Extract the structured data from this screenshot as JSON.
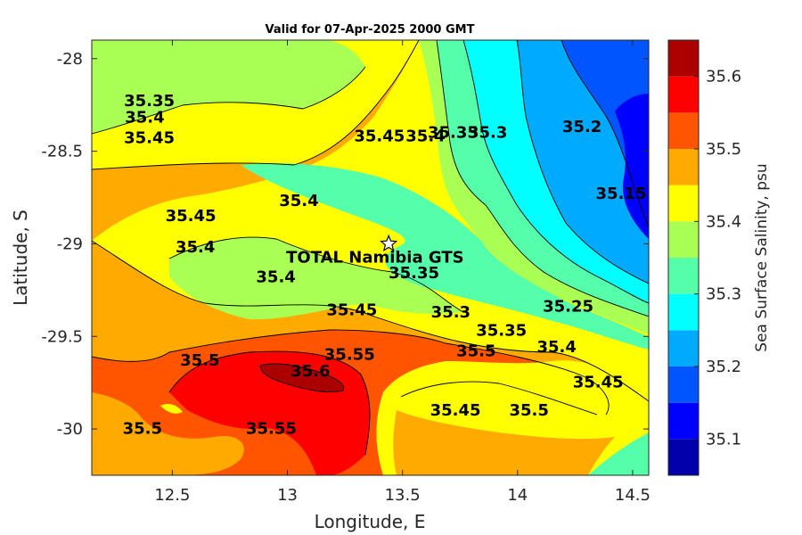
{
  "title": "Valid for 07-Apr-2025 2000 GMT",
  "chart_data": {
    "type": "heatmap",
    "variant": "filled-contour",
    "title": "Valid for 07-Apr-2025 2000 GMT",
    "xlabel": "Longitude, E",
    "ylabel": "Latitude, S",
    "xlim": [
      12.15,
      14.57
    ],
    "ylim": [
      -30.25,
      -27.9
    ],
    "xticks": [
      "12.5",
      "13",
      "13.5",
      "14",
      "14.5"
    ],
    "xtick_values": [
      12.5,
      13,
      13.5,
      14,
      14.5
    ],
    "yticks": [
      "-28",
      "-28.5",
      "-29",
      "-29.5",
      "-30"
    ],
    "ytick_values": [
      -28,
      -28.5,
      -29,
      -29.5,
      -30
    ],
    "colorbar": {
      "label": "Sea Surface Salinity, psu",
      "range": [
        35.05,
        35.65
      ],
      "ticks": [
        "35.1",
        "35.2",
        "35.3",
        "35.4",
        "35.5",
        "35.6"
      ],
      "tick_values": [
        35.1,
        35.2,
        35.3,
        35.4,
        35.5,
        35.6
      ],
      "levels": [
        35.05,
        35.1,
        35.15,
        35.2,
        35.25,
        35.3,
        35.35,
        35.4,
        35.45,
        35.5,
        35.55,
        35.6,
        35.65
      ],
      "colors": [
        "#0000aa",
        "#0000ff",
        "#0055ff",
        "#00aaff",
        "#00ffff",
        "#55ffaa",
        "#aaff55",
        "#ffff00",
        "#ffaa00",
        "#ff5500",
        "#ff0000",
        "#aa0000"
      ]
    },
    "contour_labels": [
      {
        "text": "35.35",
        "lon": 12.4,
        "lat": -28.23
      },
      {
        "text": "35.4",
        "lon": 12.38,
        "lat": -28.32
      },
      {
        "text": "35.45",
        "lon": 12.4,
        "lat": -28.43
      },
      {
        "text": "35.45",
        "lon": 13.4,
        "lat": -28.42
      },
      {
        "text": "35.4",
        "lon": 13.6,
        "lat": -28.42
      },
      {
        "text": "35.35",
        "lon": 13.72,
        "lat": -28.4
      },
      {
        "text": "35.3",
        "lon": 13.87,
        "lat": -28.4
      },
      {
        "text": "35.2",
        "lon": 14.28,
        "lat": -28.37
      },
      {
        "text": "35.15",
        "lon": 14.45,
        "lat": -28.73
      },
      {
        "text": "35.4",
        "lon": 13.05,
        "lat": -28.77
      },
      {
        "text": "35.45",
        "lon": 12.58,
        "lat": -28.85
      },
      {
        "text": "35.4",
        "lon": 12.6,
        "lat": -29.02
      },
      {
        "text": "35.35",
        "lon": 13.55,
        "lat": -29.16
      },
      {
        "text": "35.4",
        "lon": 12.95,
        "lat": -29.18
      },
      {
        "text": "35.25",
        "lon": 14.22,
        "lat": -29.34
      },
      {
        "text": "35.45",
        "lon": 13.28,
        "lat": -29.36
      },
      {
        "text": "35.3",
        "lon": 13.71,
        "lat": -29.37
      },
      {
        "text": "35.35",
        "lon": 13.93,
        "lat": -29.47
      },
      {
        "text": "35.4",
        "lon": 14.17,
        "lat": -29.56
      },
      {
        "text": "35.55",
        "lon": 13.27,
        "lat": -29.6
      },
      {
        "text": "35.5",
        "lon": 13.82,
        "lat": -29.58
      },
      {
        "text": "35.5",
        "lon": 12.62,
        "lat": -29.63
      },
      {
        "text": "35.6",
        "lon": 13.1,
        "lat": -29.69
      },
      {
        "text": "35.45",
        "lon": 14.35,
        "lat": -29.75
      },
      {
        "text": "35.45",
        "lon": 13.73,
        "lat": -29.9
      },
      {
        "text": "35.5",
        "lon": 14.05,
        "lat": -29.9
      },
      {
        "text": "35.5",
        "lon": 12.37,
        "lat": -30.0
      },
      {
        "text": "35.55",
        "lon": 12.93,
        "lat": -30.0
      }
    ],
    "annotations": [
      {
        "text": "TOTAL Namibia GTS",
        "marker": "star",
        "lon": 13.44,
        "lat": -29.0
      }
    ]
  }
}
